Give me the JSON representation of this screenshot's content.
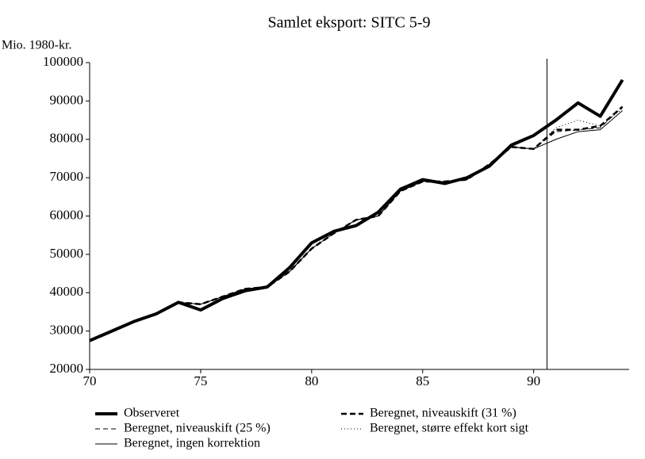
{
  "chart_data": {
    "type": "line",
    "title": "Samlet eksport: SITC 5-9",
    "y_label": "Mio. 1980-kr.",
    "x": [
      70,
      71,
      72,
      73,
      74,
      75,
      76,
      77,
      78,
      79,
      80,
      81,
      82,
      83,
      84,
      85,
      86,
      87,
      88,
      89,
      90,
      91,
      92,
      93,
      94
    ],
    "xlim": [
      70,
      94.3
    ],
    "xticks": [
      70,
      75,
      80,
      85,
      90
    ],
    "ylim": [
      20000,
      100000
    ],
    "yticks": [
      20000,
      30000,
      40000,
      50000,
      60000,
      70000,
      80000,
      90000,
      100000
    ],
    "reference_line_x": 90.6,
    "series": [
      {
        "name": "Observeret",
        "color": "#000000",
        "style": "thick",
        "values": [
          27500,
          30000,
          32500,
          34500,
          37500,
          35500,
          38500,
          40500,
          41500,
          46500,
          53000,
          56000,
          57500,
          61000,
          67000,
          69500,
          68500,
          70000,
          73000,
          78500,
          81000,
          85000,
          89500,
          86000,
          95500
        ]
      },
      {
        "name": "Beregnet, niveauskift (31 %)",
        "color": "#000000",
        "style": "thick-dash",
        "values": [
          27500,
          30000,
          32500,
          34500,
          37500,
          37000,
          39000,
          41000,
          41500,
          45500,
          51500,
          55500,
          59000,
          60000,
          66500,
          69000,
          69000,
          69500,
          73500,
          78000,
          77500,
          82500,
          82500,
          83500,
          88500
        ]
      },
      {
        "name": "Beregnet, niveauskift (25 %)",
        "color": "#000000",
        "style": "thin-dash",
        "values": [
          27500,
          30000,
          32500,
          34500,
          37500,
          37000,
          39000,
          41000,
          41500,
          45500,
          51500,
          55500,
          59000,
          60000,
          66500,
          69000,
          69000,
          69500,
          73500,
          78000,
          77500,
          82000,
          82500,
          83000,
          88500
        ]
      },
      {
        "name": "Beregnet, større effekt kort sigt",
        "color": "#000000",
        "style": "dot",
        "values": [
          27500,
          30000,
          32500,
          34500,
          37500,
          37000,
          39000,
          41000,
          41500,
          45500,
          51500,
          55500,
          59000,
          60000,
          66500,
          69000,
          69000,
          69500,
          73500,
          78000,
          77500,
          83000,
          85000,
          83500,
          88000
        ]
      },
      {
        "name": "Beregnet, ingen korrektion",
        "color": "#000000",
        "style": "thin",
        "values": [
          27500,
          30000,
          32500,
          34500,
          37500,
          37000,
          39000,
          41000,
          41500,
          45500,
          51500,
          55500,
          59000,
          60000,
          66500,
          69000,
          69000,
          69500,
          73500,
          78000,
          77500,
          80000,
          82000,
          82500,
          87500
        ]
      }
    ]
  }
}
